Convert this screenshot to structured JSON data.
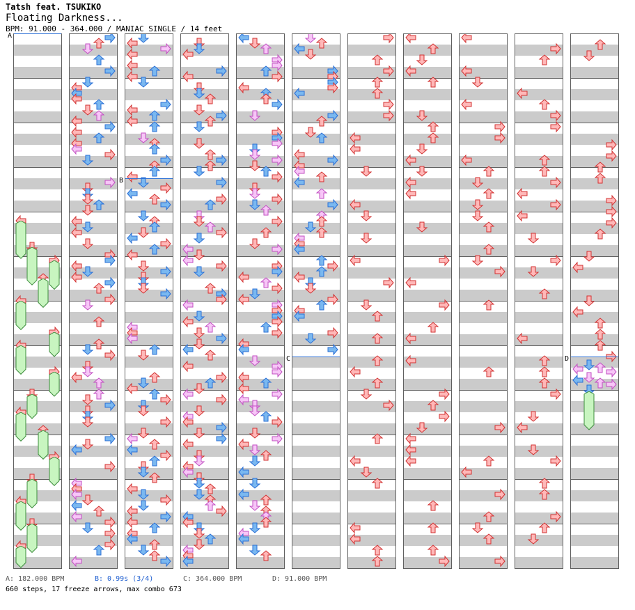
{
  "song": {
    "artist": "Tatsh feat. TSUKIKO",
    "title": "Floating Darkness...",
    "bpm_info": "BPM: 91.000 - 364.000 / MANIAC SINGLE / 14 feet"
  },
  "chart": {
    "columns": 11,
    "measures_per_column": 12,
    "segment_markers": [
      {
        "label": "A",
        "column": 0,
        "measure": 0
      },
      {
        "label": "B",
        "column": 2,
        "measure": 3
      },
      {
        "label": "C",
        "column": 5,
        "measure": 7
      },
      {
        "label": "D",
        "column": 10,
        "measure": 7
      }
    ]
  },
  "legend": {
    "a": "A: 182.000 BPM",
    "b": "B: 0.99s (3/4)",
    "c": "C: 364.000 BPM",
    "d": "D: 91.000 BPM"
  },
  "summary": "660 steps, 17 freeze arrows, max combo 673",
  "colors": {
    "red_fill": "#ffb8b8",
    "red_stroke": "#d23232",
    "blue_fill": "#7ab8f0",
    "blue_stroke": "#2a6fd6",
    "pink_fill": "#f7c6f7",
    "pink_stroke": "#c24fc2",
    "freeze_fill": "#c8f5c0",
    "freeze_stroke": "#3c8c3c",
    "band": "#cbcbcb",
    "border": "#606060"
  }
}
